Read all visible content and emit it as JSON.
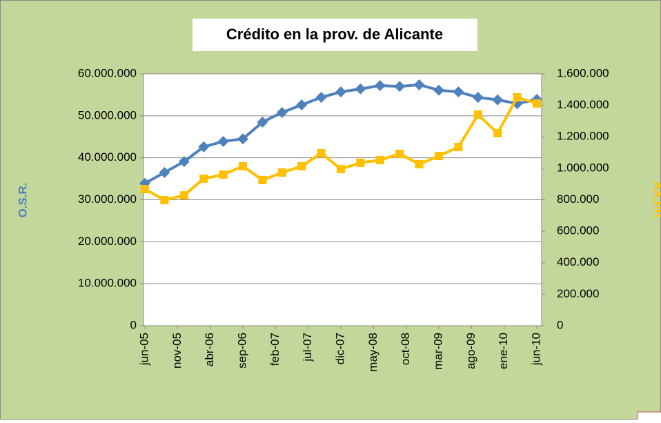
{
  "chart_data": {
    "type": "line",
    "title": "Crédito en la prov. de Alicante",
    "y_label": "O.S.R.",
    "y2_label": "AA.PP.",
    "x": [
      0,
      3,
      6,
      9,
      12,
      15,
      18,
      21,
      24,
      27,
      30,
      33,
      36,
      39,
      42,
      45,
      48,
      51,
      54,
      57,
      60
    ],
    "xlim": [
      0,
      60
    ],
    "xticks": [
      {
        "value": 0,
        "label": "jun-05"
      },
      {
        "value": 5,
        "label": "nov-05"
      },
      {
        "value": 10,
        "label": "abr-06"
      },
      {
        "value": 15,
        "label": "sep-06"
      },
      {
        "value": 20,
        "label": "feb-07"
      },
      {
        "value": 25,
        "label": "jul-07"
      },
      {
        "value": 30,
        "label": "dic-07"
      },
      {
        "value": 35,
        "label": "may-08"
      },
      {
        "value": 40,
        "label": "oct-08"
      },
      {
        "value": 45,
        "label": "mar-09"
      },
      {
        "value": 50,
        "label": "ago-09"
      },
      {
        "value": 55,
        "label": "ene-10"
      },
      {
        "value": 60,
        "label": "jun-10"
      }
    ],
    "ylim": [
      0,
      60000000
    ],
    "yticks": [
      0,
      {
        "value": 10000000,
        "label": "10.000.000"
      },
      {
        "value": 20000000,
        "label": "20.000.000"
      },
      {
        "value": 30000000,
        "label": "30.000.000"
      },
      {
        "value": 40000000,
        "label": "40.000.000"
      },
      {
        "value": 50000000,
        "label": "50.000.000"
      },
      {
        "value": 60000000,
        "label": "60.000.000"
      }
    ],
    "y2lim": [
      0,
      1600000
    ],
    "y2ticks": [
      0,
      {
        "value": 200000,
        "label": "200.000"
      },
      {
        "value": 400000,
        "label": "400.000"
      },
      {
        "value": 600000,
        "label": "600.000"
      },
      {
        "value": 800000,
        "label": "800.000"
      },
      {
        "value": 1000000,
        "label": "1.000.000"
      },
      {
        "value": 1200000,
        "label": "1.200.000"
      },
      {
        "value": 1400000,
        "label": "1.400.000"
      },
      {
        "value": 1600000,
        "label": "1.600.000"
      }
    ],
    "grid": true,
    "series": [
      {
        "name": "O.S.R.",
        "color": "#4f81bd",
        "marker": "diamond",
        "axis": "y",
        "values": [
          33900000,
          36500000,
          39100000,
          42600000,
          43900000,
          44500000,
          48500000,
          50800000,
          52600000,
          54400000,
          55700000,
          56400000,
          57200000,
          57000000,
          57400000,
          56100000,
          55700000,
          54400000,
          53800000,
          52900000,
          53900000
        ]
      },
      {
        "name": "AA.PP.",
        "color": "#ffc000",
        "marker": "square",
        "axis": "y2",
        "values": [
          868000,
          798000,
          828000,
          934000,
          960000,
          1013000,
          925000,
          973000,
          1013000,
          1096000,
          995000,
          1035000,
          1052000,
          1092000,
          1026000,
          1078000,
          1135000,
          1341000,
          1223000,
          1451000,
          1412000
        ]
      }
    ]
  }
}
